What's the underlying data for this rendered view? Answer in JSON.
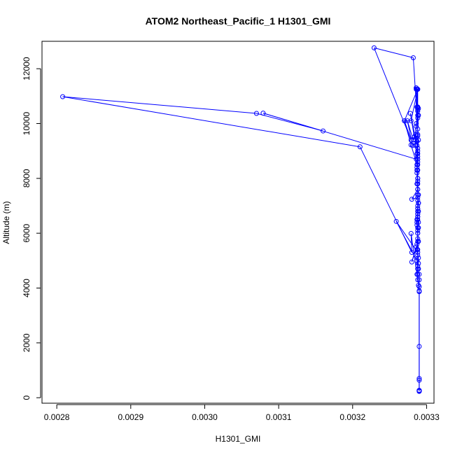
{
  "chart_data": {
    "type": "line",
    "title": "ATOM2 Northeast_Pacific_1 H1301_GMI",
    "xlabel": "H1301_GMI",
    "ylabel": "Altitude (m)",
    "xlim": [
      0.00278,
      0.00331
    ],
    "ylim": [
      -200,
      13000
    ],
    "x_ticks": [
      0.0028,
      0.0029,
      0.003,
      0.0031,
      0.0032,
      0.0033
    ],
    "x_tick_labels": [
      "0.0028",
      "0.0029",
      "0.0030",
      "0.0031",
      "0.0032",
      "0.0033"
    ],
    "y_ticks": [
      0,
      2000,
      4000,
      6000,
      8000,
      10000,
      12000
    ],
    "y_tick_labels": [
      "0",
      "2000",
      "4000",
      "6000",
      "8000",
      "10000",
      "12000"
    ],
    "marker": "open-circle",
    "grid": false,
    "legend": false,
    "color": "#0000ff",
    "series": [
      {
        "x": [
          0.00329,
          0.00329,
          0.00329,
          0.00329,
          0.00329,
          0.00329,
          0.00329,
          0.00329,
          0.00329,
          0.00329,
          0.00329,
          0.003289,
          0.003288,
          0.003289,
          0.003289,
          0.003288,
          0.003287,
          0.003286,
          0.00328,
          0.003289,
          0.003288,
          0.003289,
          0.003289,
          0.003287,
          0.003288,
          0.003288,
          0.003289,
          0.003288,
          0.003289,
          0.003288,
          0.00328,
          0.003288,
          0.003288,
          0.003288,
          0.003288,
          0.003287,
          0.003288,
          0.003288,
          0.003288,
          0.003287,
          0.003281,
          0.003274,
          0.003282,
          0.003283,
          0.003285,
          0.003286,
          0.003288,
          0.003289,
          0.003288,
          0.003288,
          0.00327,
          0.003279,
          0.003287,
          0.003288,
          0.003288,
          0.003288,
          0.003288,
          0.003288,
          0.003287,
          0.003286,
          0.003286,
          0.003287,
          0.003288,
          0.003289,
          0.003288,
          0.003288,
          0.003284,
          0.003278,
          0.003287,
          0.003288,
          0.003288,
          0.003287,
          0.003288,
          0.003289,
          0.003288,
          0.003288,
          0.003288,
          0.003288,
          0.003288,
          0.003287,
          0.003288,
          0.003288,
          0.003287,
          0.003288,
          0.003288,
          0.003259,
          0.003287,
          0.003288,
          0.003287,
          0.003288,
          0.003279,
          0.00328,
          0.00321,
          0.002808,
          0.00307,
          0.00316,
          0.003079,
          0.003286,
          0.003289,
          0.003282,
          0.003229,
          0.003279,
          0.00327,
          0.003279,
          0.003288,
          0.003286,
          0.003288,
          0.003286,
          0.003285,
          0.003287,
          0.003288,
          0.003288,
          0.003287,
          0.003288,
          0.003287,
          0.003288,
          0.003288,
          0.003289,
          0.003288,
          0.003288,
          0.003287,
          0.003288,
          0.003288,
          0.003288,
          0.003288,
          0.003289,
          0.00329,
          0.00329,
          0.00329,
          0.00329
        ],
        "y": [
          240,
          250,
          260,
          270,
          640,
          700,
          1870,
          3870,
          4050,
          4300,
          4500,
          4700,
          4800,
          4900,
          5100,
          5200,
          5400,
          5500,
          4950,
          5700,
          6000,
          6200,
          6400,
          6500,
          6600,
          6700,
          6800,
          6900,
          7100,
          7300,
          7240,
          7600,
          7900,
          8000,
          8300,
          8400,
          8700,
          8900,
          9100,
          9350,
          9200,
          10100,
          9400,
          9500,
          9600,
          10000,
          10300,
          10550,
          10600,
          11250,
          10100,
          9220,
          8500,
          9000,
          9600,
          10200,
          10450,
          10600,
          11250,
          11300,
          11250,
          10600,
          10500,
          10300,
          9800,
          9550,
          9420,
          10370,
          9200,
          8800,
          8600,
          8200,
          7800,
          7400,
          7200,
          7000,
          6800,
          6600,
          6500,
          6300,
          6100,
          5800,
          5600,
          5400,
          5300,
          6430,
          5000,
          4700,
          4500,
          4300,
          5990,
          5300,
          9150,
          10980,
          10370,
          9730,
          10380,
          8700,
          9400,
          12400,
          12760,
          9400,
          10100,
          10100,
          11250,
          11300,
          10600,
          9900,
          9200,
          8900,
          8700,
          8500,
          8300,
          8000,
          7800,
          7600,
          7400,
          7100,
          6900,
          6700,
          6400,
          6200,
          6000,
          5700,
          4500,
          4100,
          3900,
          260,
          240,
          230
        ]
      }
    ]
  }
}
